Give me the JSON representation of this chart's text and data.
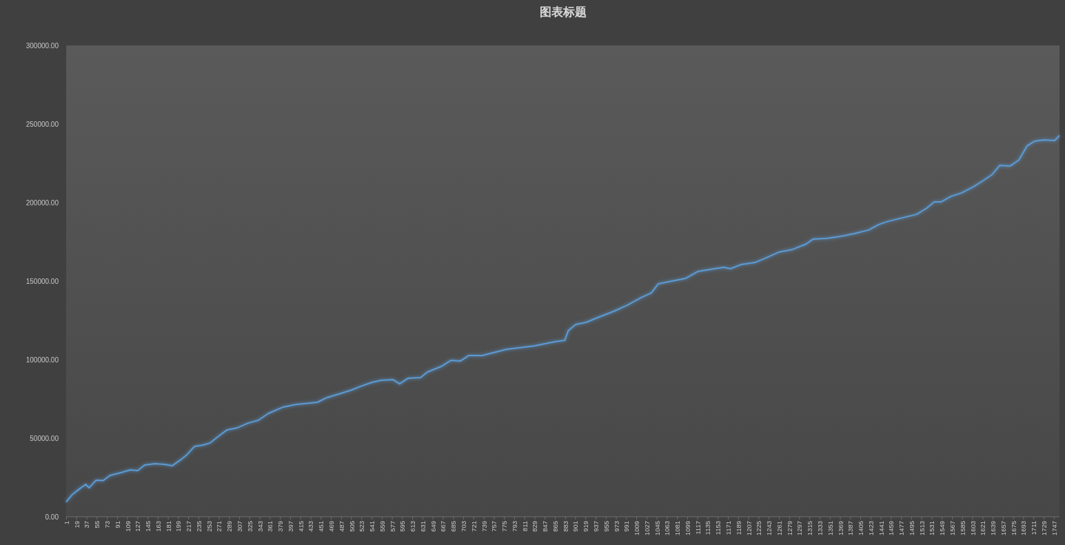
{
  "chart_data": {
    "type": "line",
    "title": "图表标题",
    "x": [
      1,
      11,
      23,
      35,
      41,
      53,
      66,
      78,
      96,
      114,
      127,
      139,
      157,
      175,
      188,
      202,
      214,
      227,
      242,
      255,
      270,
      285,
      303,
      322,
      340,
      358,
      383,
      407,
      431,
      444,
      462,
      486,
      505,
      523,
      541,
      557,
      578,
      590,
      605,
      627,
      639,
      663,
      681,
      697,
      712,
      736,
      755,
      779,
      809,
      828,
      846,
      864,
      882,
      888,
      901,
      919,
      943,
      968,
      992,
      1017,
      1035,
      1047,
      1071,
      1096,
      1117,
      1139,
      1163,
      1175,
      1193,
      1218,
      1236,
      1260,
      1285,
      1309,
      1321,
      1345,
      1370,
      1394,
      1419,
      1437,
      1455,
      1480,
      1504,
      1522,
      1535,
      1547,
      1565,
      1583,
      1602,
      1620,
      1638,
      1651,
      1669,
      1685,
      1699,
      1712,
      1730,
      1748,
      1756
    ],
    "series": [
      {
        "color": "#5b9bd5",
        "values": [
          9700,
          14000,
          17500,
          20600,
          18400,
          23200,
          23000,
          26300,
          28000,
          29800,
          29400,
          32900,
          33800,
          33300,
          32500,
          36000,
          39500,
          44700,
          45600,
          47000,
          51300,
          55300,
          56600,
          59600,
          61400,
          65800,
          69700,
          71500,
          72400,
          72800,
          75900,
          78500,
          80700,
          83300,
          85500,
          86800,
          87300,
          84600,
          88200,
          88600,
          92100,
          95600,
          99600,
          99100,
          102600,
          102600,
          104400,
          106600,
          107900,
          108800,
          110100,
          111400,
          112300,
          118400,
          122400,
          123700,
          127200,
          130700,
          134600,
          139500,
          142500,
          148200,
          150000,
          151800,
          156100,
          157500,
          158800,
          157900,
          160500,
          161800,
          164500,
          168400,
          170200,
          173700,
          176800,
          177200,
          178500,
          180300,
          182500,
          186000,
          188200,
          190400,
          192500,
          196500,
          200400,
          200400,
          204000,
          206100,
          209600,
          213600,
          218000,
          223700,
          223200,
          227200,
          236000,
          239000,
          239900,
          239500,
          242500
        ]
      }
    ],
    "xlim": [
      0.5,
      1756.5
    ],
    "xticks": [
      1,
      19,
      37,
      55,
      73,
      91,
      109,
      127,
      145,
      163,
      181,
      199,
      217,
      235,
      253,
      271,
      289,
      307,
      325,
      343,
      361,
      379,
      397,
      415,
      433,
      451,
      469,
      487,
      505,
      523,
      541,
      559,
      577,
      595,
      613,
      631,
      649,
      667,
      685,
      703,
      721,
      739,
      757,
      775,
      793,
      811,
      829,
      847,
      865,
      883,
      901,
      919,
      937,
      955,
      973,
      991,
      1009,
      1027,
      1045,
      1063,
      1081,
      1099,
      1117,
      1135,
      1153,
      1171,
      1189,
      1207,
      1225,
      1243,
      1261,
      1279,
      1297,
      1315,
      1333,
      1351,
      1369,
      1387,
      1405,
      1423,
      1441,
      1459,
      1477,
      1495,
      1513,
      1531,
      1549,
      1567,
      1585,
      1603,
      1621,
      1639,
      1657,
      1675,
      1693,
      1711,
      1729,
      1747
    ],
    "ylim": [
      0,
      300000
    ],
    "yticks": [
      {
        "value": 0,
        "label": "0.00"
      },
      {
        "value": 50000,
        "label": "50000.00"
      },
      {
        "value": 100000,
        "label": "100000.00"
      },
      {
        "value": 150000,
        "label": "150000.00"
      },
      {
        "value": 200000,
        "label": "200000.00"
      },
      {
        "value": 250000,
        "label": "250000.00"
      },
      {
        "value": 300000,
        "label": "300000.00"
      }
    ],
    "grid": false,
    "marker": "none",
    "line_style": "solid"
  }
}
